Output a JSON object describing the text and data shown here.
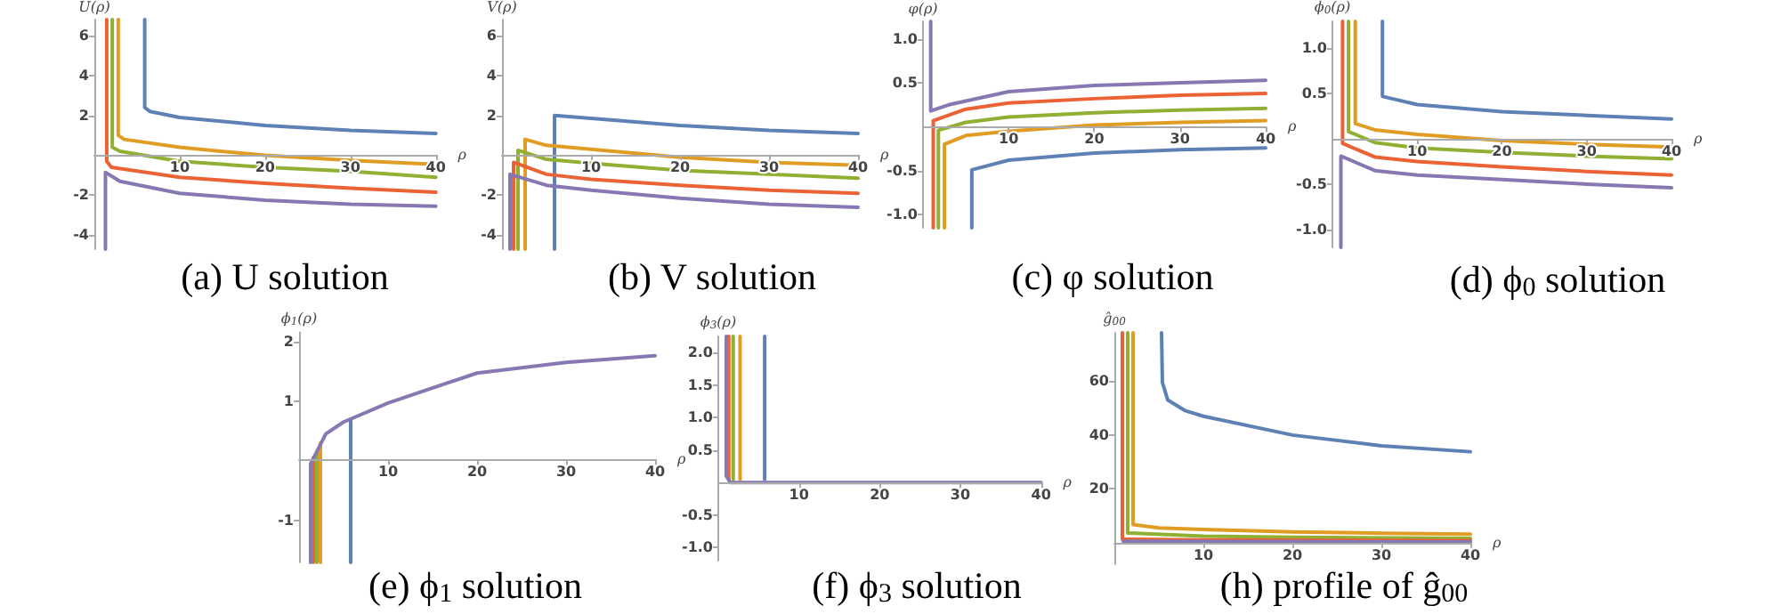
{
  "chart_data": [
    {
      "type": "line",
      "title": "(a) U solution",
      "xlabel": "ρ",
      "ylabel": "U(ρ)",
      "xlim": [
        0,
        40
      ],
      "xticks": [
        10,
        20,
        30,
        40
      ],
      "ylim": [
        -4.7,
        6.8
      ],
      "yticks": [
        -4,
        -2,
        2,
        4,
        6
      ],
      "marker": "none",
      "line_style": "solid",
      "series": [
        {
          "color": "#5e81b5",
          "x": [
            5.9,
            5.9,
            6.5,
            10,
            20,
            30,
            40
          ],
          "values": [
            6.8,
            2.4,
            2.2,
            1.9,
            1.5,
            1.25,
            1.1
          ]
        },
        {
          "color": "#e19c24",
          "x": [
            2.8,
            2.8,
            3.5,
            10,
            20,
            30,
            40
          ],
          "values": [
            6.8,
            1.0,
            0.8,
            0.4,
            0,
            -0.25,
            -0.45
          ]
        },
        {
          "color": "#8fb032",
          "x": [
            2.1,
            2.1,
            3,
            10,
            20,
            30,
            40
          ],
          "values": [
            6.8,
            0.4,
            0.2,
            -0.3,
            -0.6,
            -0.8,
            -1.1
          ]
        },
        {
          "color": "#eb6235",
          "x": [
            1.45,
            1.45,
            2,
            10,
            20,
            30,
            40
          ],
          "values": [
            6.8,
            -0.3,
            -0.6,
            -1.1,
            -1.4,
            -1.65,
            -1.85
          ]
        },
        {
          "color": "#8778b3",
          "x": [
            1.3,
            1.3,
            3,
            10,
            20,
            30,
            40
          ],
          "values": [
            -4.7,
            -0.85,
            -1.3,
            -1.9,
            -2.25,
            -2.45,
            -2.55
          ]
        }
      ]
    },
    {
      "type": "line",
      "title": "(b) V solution",
      "xlabel": "ρ",
      "ylabel": "V(ρ)",
      "xlim": [
        0,
        40
      ],
      "xticks": [
        10,
        20,
        30,
        40
      ],
      "ylim": [
        -4.7,
        6.8
      ],
      "yticks": [
        -4,
        -2,
        2,
        4,
        6
      ],
      "marker": "none",
      "line_style": "solid",
      "series": [
        {
          "color": "#5e81b5",
          "x": [
            5.9,
            5.9,
            10,
            20,
            30,
            40
          ],
          "values": [
            -4.7,
            2.0,
            1.85,
            1.5,
            1.25,
            1.1
          ]
        },
        {
          "color": "#e19c24",
          "x": [
            2.6,
            2.6,
            5,
            10,
            20,
            30,
            40
          ],
          "values": [
            -4.7,
            0.8,
            0.5,
            0.3,
            -0.1,
            -0.35,
            -0.5
          ]
        },
        {
          "color": "#8fb032",
          "x": [
            1.8,
            1.8,
            5,
            10,
            20,
            30,
            40
          ],
          "values": [
            -4.7,
            0.25,
            -0.2,
            -0.4,
            -0.75,
            -0.95,
            -1.15
          ]
        },
        {
          "color": "#eb6235",
          "x": [
            1.3,
            1.3,
            5,
            10,
            20,
            30,
            40
          ],
          "values": [
            -4.7,
            -0.35,
            -0.95,
            -1.2,
            -1.5,
            -1.75,
            -1.9
          ]
        },
        {
          "color": "#8778b3",
          "x": [
            0.9,
            0.9,
            5,
            10,
            20,
            30,
            40
          ],
          "values": [
            -4.7,
            -0.95,
            -1.5,
            -1.75,
            -2.15,
            -2.45,
            -2.6
          ]
        }
      ]
    },
    {
      "type": "line",
      "title": "(c) φ solution",
      "xlabel": "ρ",
      "ylabel": "φ(ρ)",
      "xlim": [
        0,
        40
      ],
      "xticks": [
        10,
        20,
        30,
        40
      ],
      "ylim": [
        -1.15,
        1.2
      ],
      "yticks": [
        {
          "value": -1,
          "label": "-1.0"
        },
        {
          "value": -0.5,
          "label": "-0.5"
        },
        {
          "value": 0.5,
          "label": "0.5"
        },
        {
          "value": 1,
          "label": "1.0"
        }
      ],
      "marker": "none",
      "line_style": "solid",
      "series": [
        {
          "color": "#5e81b5",
          "x": [
            5.7,
            5.7,
            10,
            20,
            30,
            40
          ],
          "values": [
            -1.15,
            -0.49,
            -0.38,
            -0.3,
            -0.26,
            -0.24
          ]
        },
        {
          "color": "#e19c24",
          "x": [
            2.5,
            2.5,
            5,
            10,
            20,
            30,
            40
          ],
          "values": [
            -1.15,
            -0.2,
            -0.1,
            -0.05,
            0.02,
            0.05,
            0.07
          ]
        },
        {
          "color": "#8fb032",
          "x": [
            1.8,
            1.8,
            5,
            10,
            20,
            30,
            40
          ],
          "values": [
            -1.15,
            -0.04,
            0.05,
            0.11,
            0.16,
            0.19,
            0.21
          ]
        },
        {
          "color": "#eb6235",
          "x": [
            1.2,
            1.2,
            5,
            10,
            20,
            30,
            40
          ],
          "values": [
            -1.15,
            0.07,
            0.2,
            0.27,
            0.32,
            0.36,
            0.38
          ]
        },
        {
          "color": "#8778b3",
          "x": [
            0.9,
            0.9,
            3,
            10,
            20,
            30,
            40
          ],
          "values": [
            1.2,
            0.18,
            0.25,
            0.4,
            0.47,
            0.5,
            0.53
          ]
        }
      ]
    },
    {
      "type": "line",
      "title": "(d) ϕ$_{0}$ solution",
      "xlabel": "ρ",
      "ylabel": "ϕ$_{0}$(ρ)",
      "xlim": [
        0,
        40
      ],
      "xticks": [
        10,
        20,
        30,
        40
      ],
      "ylim": [
        -1.2,
        1.3
      ],
      "yticks": [
        {
          "value": -1,
          "label": "-1.0"
        },
        {
          "value": -0.5,
          "label": "-0.5"
        },
        {
          "value": 0.5,
          "label": "0.5"
        },
        {
          "value": 1,
          "label": "1.0"
        }
      ],
      "marker": "none",
      "line_style": "solid",
      "series": [
        {
          "color": "#5e81b5",
          "x": [
            5.9,
            5.9,
            10,
            20,
            30,
            40
          ],
          "values": [
            1.3,
            0.47,
            0.38,
            0.3,
            0.26,
            0.22
          ]
        },
        {
          "color": "#e19c24",
          "x": [
            2.7,
            2.7,
            5,
            10,
            20,
            30,
            40
          ],
          "values": [
            1.3,
            0.17,
            0.1,
            0.05,
            -0.02,
            -0.06,
            -0.09
          ]
        },
        {
          "color": "#8fb032",
          "x": [
            1.9,
            1.9,
            5,
            10,
            20,
            30,
            40
          ],
          "values": [
            1.3,
            0.08,
            -0.04,
            -0.1,
            -0.15,
            -0.19,
            -0.22
          ]
        },
        {
          "color": "#eb6235",
          "x": [
            1.2,
            1.2,
            5,
            10,
            20,
            30,
            40
          ],
          "values": [
            1.3,
            -0.05,
            -0.2,
            -0.25,
            -0.31,
            -0.36,
            -0.4
          ]
        },
        {
          "color": "#8778b3",
          "x": [
            1.0,
            1.0,
            5,
            10,
            20,
            30,
            40
          ],
          "values": [
            -1.2,
            -0.19,
            -0.35,
            -0.4,
            -0.45,
            -0.5,
            -0.54
          ]
        }
      ]
    },
    {
      "type": "line",
      "title": "(e) ϕ$_{1}$ solution",
      "xlabel": "ρ",
      "ylabel": "ϕ$_{1}$(ρ)",
      "xlim": [
        0,
        40
      ],
      "xticks": [
        10,
        20,
        30,
        40
      ],
      "ylim": [
        -1.7,
        2.15
      ],
      "yticks": [
        -1,
        1,
        2
      ],
      "marker": "none",
      "line_style": "solid",
      "series": [
        {
          "color": "#5e81b5",
          "x": [
            5.8,
            5.8
          ],
          "values": [
            -1.7,
            0.7
          ]
        },
        {
          "color": "#e19c24",
          "x": [
            2.4,
            2.4
          ],
          "values": [
            -1.7,
            0.3
          ]
        },
        {
          "color": "#8fb032",
          "x": [
            2.0,
            2.0
          ],
          "values": [
            -1.7,
            0.15
          ]
        },
        {
          "color": "#eb6235",
          "x": [
            1.6,
            1.6
          ],
          "values": [
            -1.7,
            0.05
          ]
        },
        {
          "color": "#8778b3",
          "x": [
            1.3,
            1.3,
            3,
            5,
            10,
            20,
            30,
            40
          ],
          "values": [
            -1.7,
            -0.05,
            0.45,
            0.65,
            0.97,
            1.47,
            1.65,
            1.76
          ]
        }
      ]
    },
    {
      "type": "line",
      "title": "(f) ϕ$_{3}$ solution",
      "xlabel": "ρ",
      "ylabel": "ϕ$_{3}$(ρ)",
      "xlim": [
        0,
        40
      ],
      "xticks": [
        10,
        20,
        30,
        40
      ],
      "ylim": [
        -1.2,
        2.25
      ],
      "yticks": [
        {
          "value": -1,
          "label": "-1.0"
        },
        {
          "value": -0.5,
          "label": "-0.5"
        },
        {
          "value": 0.5,
          "label": "0.5"
        },
        {
          "value": 1,
          "label": "1.0"
        },
        {
          "value": 1.5,
          "label": "1.5"
        },
        {
          "value": 2,
          "label": "2.0"
        }
      ],
      "marker": "none",
      "line_style": "solid",
      "series": [
        {
          "color": "#5e81b5",
          "x": [
            5.75,
            5.75
          ],
          "values": [
            2.25,
            0.05
          ]
        },
        {
          "color": "#e19c24",
          "x": [
            2.7,
            2.7
          ],
          "values": [
            2.25,
            0.05
          ]
        },
        {
          "color": "#8fb032",
          "x": [
            1.85,
            1.85
          ],
          "values": [
            2.25,
            0.05
          ]
        },
        {
          "color": "#eb6235",
          "x": [
            1.3,
            1.3
          ],
          "values": [
            2.25,
            0.05
          ]
        },
        {
          "color": "#8778b3",
          "x": [
            1.0,
            1.0,
            1.5,
            40
          ],
          "values": [
            2.25,
            0.1,
            0,
            0
          ]
        }
      ]
    },
    {
      "type": "line",
      "title": "(h) profile of ĝ$_{00}$",
      "xlabel": "ρ",
      "ylabel": "ĝ$_{00}$",
      "xlim": [
        0,
        40
      ],
      "xticks": [
        10,
        20,
        30,
        40
      ],
      "ylim": [
        -8,
        78
      ],
      "yticks": [
        20,
        40,
        60
      ],
      "marker": "none",
      "line_style": "solid",
      "series": [
        {
          "color": "#5e81b5",
          "x": [
            5.3,
            5.4,
            6,
            8,
            10,
            20,
            30,
            40
          ],
          "values": [
            78,
            59.5,
            53,
            49,
            47,
            40,
            36,
            33.8
          ]
        },
        {
          "color": "#e19c24",
          "x": [
            2.1,
            2.1,
            5,
            10,
            20,
            30,
            40
          ],
          "values": [
            78,
            6.7,
            5.5,
            4.9,
            4,
            3.5,
            3.2
          ]
        },
        {
          "color": "#8fb032",
          "x": [
            1.5,
            1.5,
            10,
            20,
            40
          ],
          "values": [
            78,
            3.6,
            2.4,
            2,
            1.6
          ]
        },
        {
          "color": "#eb6235",
          "x": [
            0.9,
            0.9,
            10,
            40
          ],
          "values": [
            78,
            1.3,
            1,
            0.8
          ]
        },
        {
          "color": "#8778b3",
          "x": [
            1,
            40
          ],
          "values": [
            0.5,
            0.3
          ]
        }
      ]
    }
  ]
}
